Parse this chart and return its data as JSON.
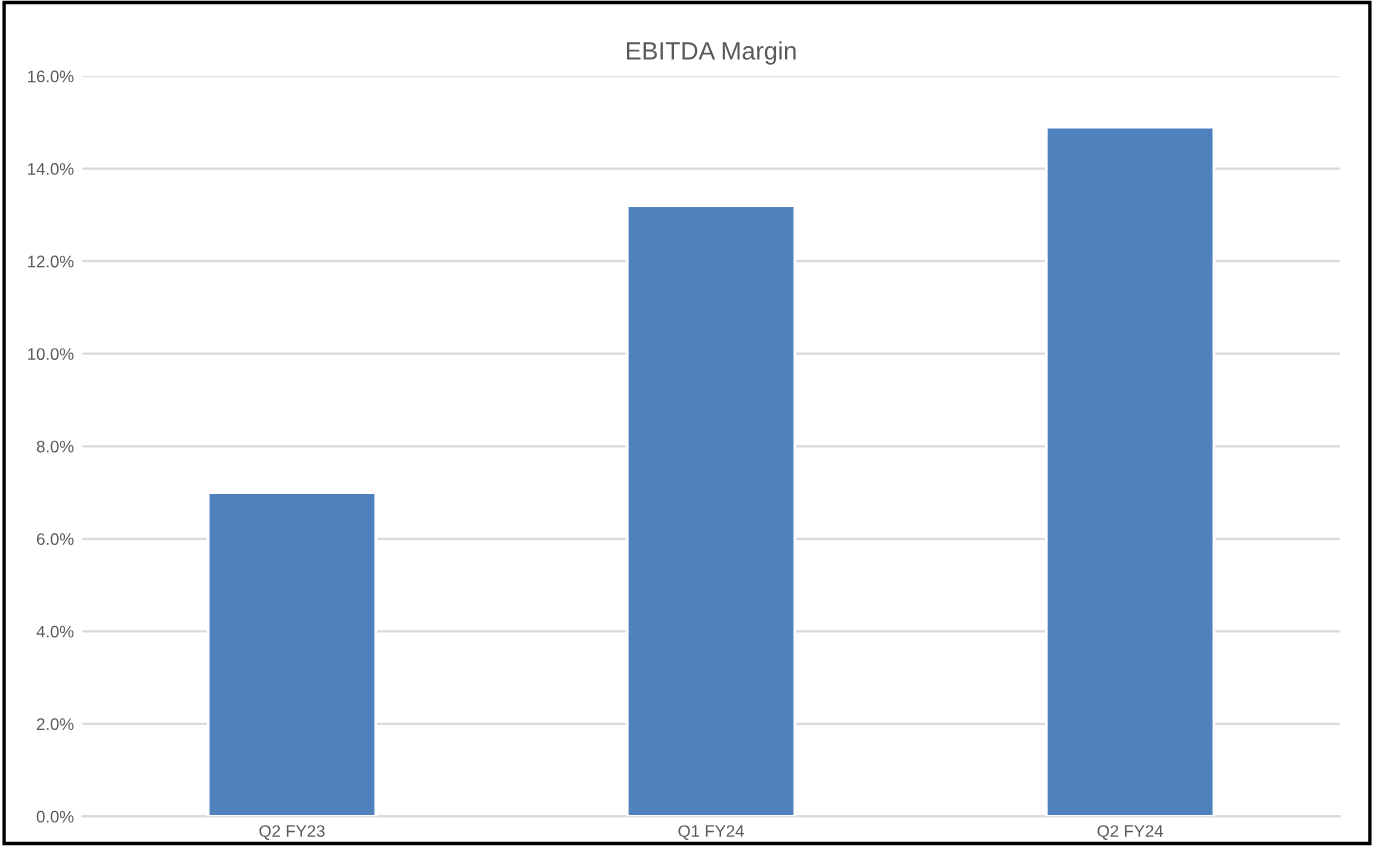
{
  "chart_data": {
    "type": "bar",
    "title": "EBITDA Margin",
    "categories": [
      "Q2 FY23",
      "Q1 FY24",
      "Q2 FY24"
    ],
    "values": [
      7.0,
      13.2,
      14.9
    ],
    "color": "#4f81bd",
    "ylim": [
      0,
      16
    ],
    "yticks": [
      {
        "value": 0,
        "label": "0.0%"
      },
      {
        "value": 2,
        "label": "2.0%"
      },
      {
        "value": 4,
        "label": "4.0%"
      },
      {
        "value": 6,
        "label": "6.0%"
      },
      {
        "value": 8,
        "label": "8.0%"
      },
      {
        "value": 10,
        "label": "10.0%"
      },
      {
        "value": 12,
        "label": "12.0%"
      },
      {
        "value": 14,
        "label": "14.0%"
      },
      {
        "value": 16,
        "label": "16.0%"
      }
    ],
    "grid": "y"
  }
}
